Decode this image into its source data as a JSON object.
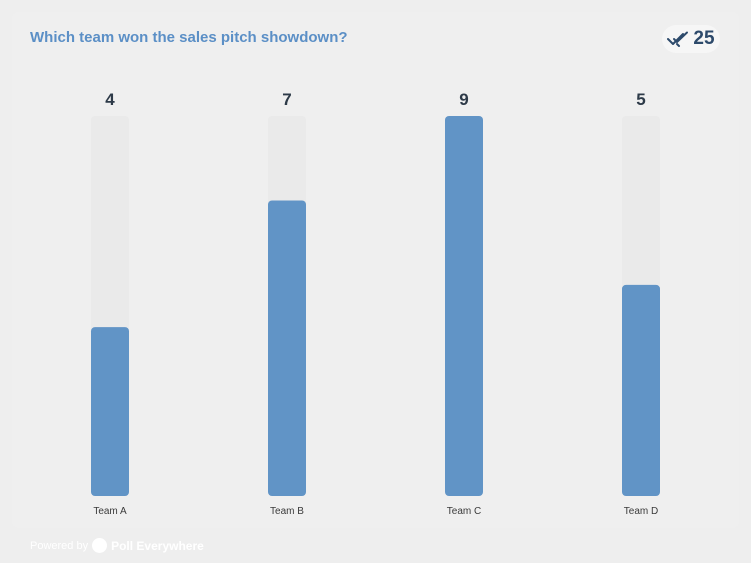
{
  "poll": {
    "title": "Which team won the sales pitch showdown?",
    "response_count": "25",
    "response_icon": "double-check-icon"
  },
  "footer": {
    "powered_by": "Powered by",
    "brand": "Poll Everywhere"
  },
  "colors": {
    "bar": "#6194c6",
    "track": "#eaeaea",
    "title": "#5b8fc6",
    "value_text": "#2d3a48",
    "label_text": "#3a3a3a"
  },
  "chart_data": {
    "type": "bar",
    "categories": [
      "Team A",
      "Team B",
      "Team C",
      "Team D"
    ],
    "values": [
      4,
      7,
      9,
      5
    ],
    "ylim": [
      0,
      9
    ],
    "grid": false,
    "title": "",
    "xlabel": "",
    "ylabel": ""
  }
}
